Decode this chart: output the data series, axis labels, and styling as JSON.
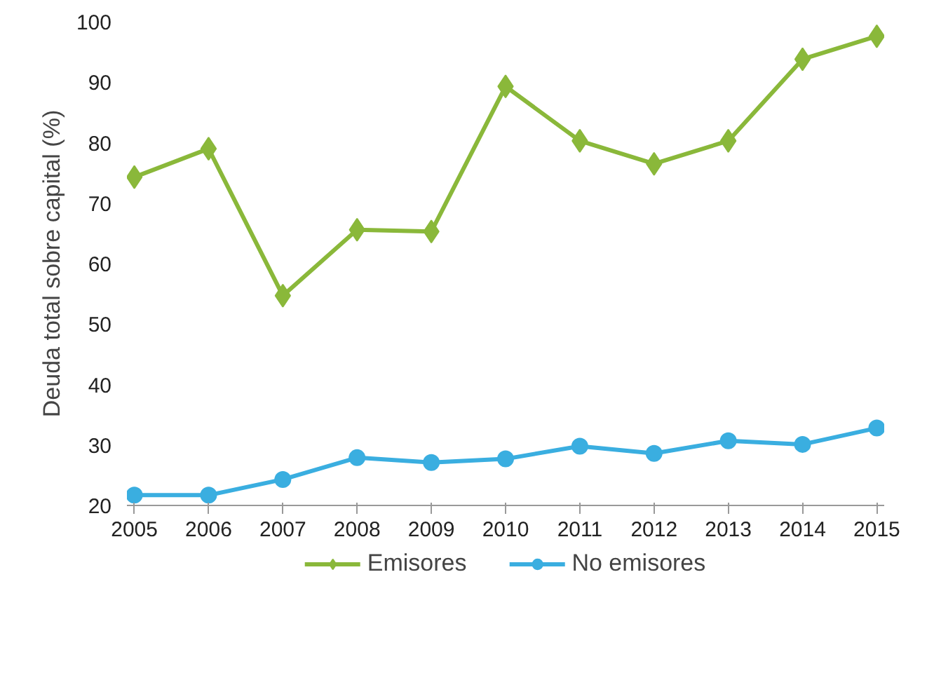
{
  "chart_data": {
    "type": "line",
    "ylabel": "Deuda total sobre capital (%)",
    "x": [
      2005,
      2006,
      2007,
      2008,
      2009,
      2010,
      2011,
      2012,
      2013,
      2014,
      2015
    ],
    "series": [
      {
        "name": "Emisores",
        "color": "#8ab83a",
        "marker": "diamond",
        "values": [
          74.3,
          79,
          54.7,
          65.6,
          65.3,
          89.3,
          80.3,
          76.5,
          80.3,
          93.8,
          97.6
        ]
      },
      {
        "name": "No emisores",
        "color": "#3aaee0",
        "marker": "circle",
        "values": [
          21.7,
          21.7,
          24.3,
          27.9,
          27.1,
          27.7,
          29.8,
          28.6,
          30.7,
          30.1,
          32.8
        ]
      }
    ],
    "xlim": [
      2004.9,
      2015.1
    ],
    "xticks": [
      2005,
      2006,
      2007,
      2008,
      2009,
      2010,
      2011,
      2012,
      2013,
      2014,
      2015
    ],
    "ylim": [
      20,
      100
    ],
    "yticks": [
      20,
      30,
      40,
      50,
      60,
      70,
      80,
      90,
      100
    ],
    "grid": false,
    "legend": "bottom",
    "line_style": "solid"
  }
}
